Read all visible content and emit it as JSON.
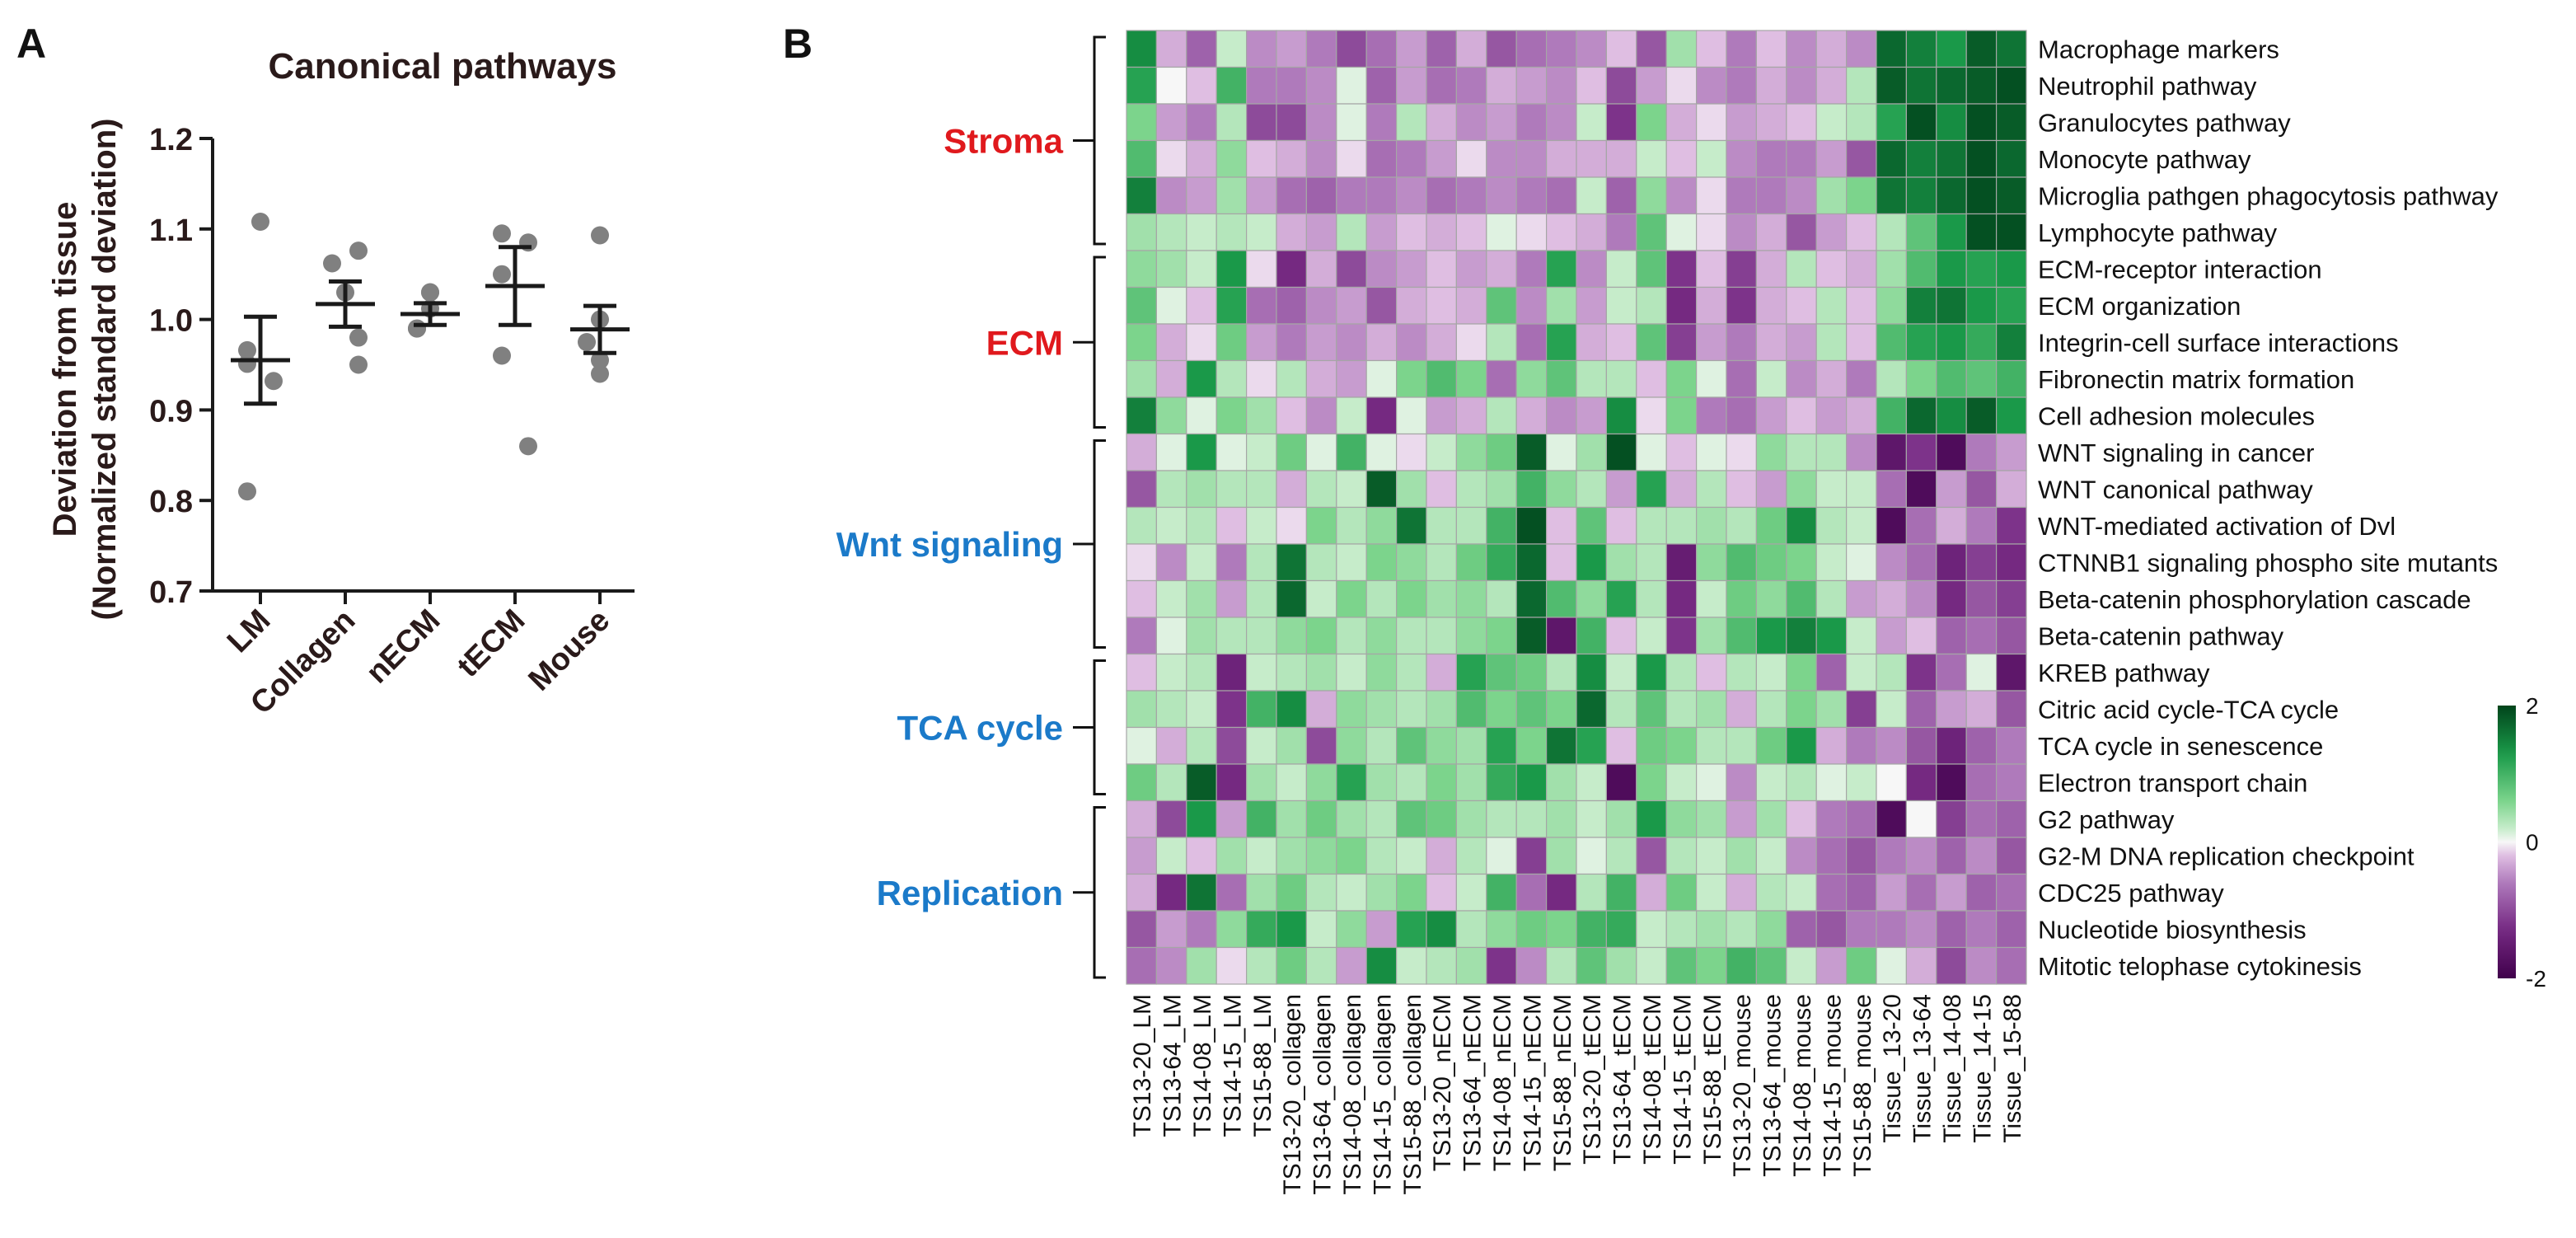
{
  "chart_data": [
    {
      "panel": "A",
      "type": "scatter",
      "title": "Canonical pathways",
      "ylabel_lines": [
        "Deviation from tissue",
        "(Normalized standard deviation)"
      ],
      "ylim": [
        0.7,
        1.2
      ],
      "yticks": [
        0.7,
        0.8,
        0.9,
        1.0,
        1.1,
        1.2
      ],
      "ytick_labels": [
        "0.7",
        "0.8",
        "0.9",
        "1.0",
        "1.1",
        "1.2"
      ],
      "categories": [
        "LM",
        "Collagen",
        "nECM",
        "tECM",
        "Mouse"
      ],
      "points": [
        [
          1.108,
          0.966,
          0.951,
          0.932,
          0.81
        ],
        [
          1.076,
          1.062,
          1.03,
          0.98,
          0.95
        ],
        [
          1.03,
          1.03,
          1.012,
          0.99,
          0.99
        ],
        [
          1.095,
          1.085,
          1.05,
          0.96,
          0.86
        ],
        [
          1.093,
          1.0,
          0.975,
          0.955,
          0.94
        ]
      ],
      "mean": [
        0.955,
        1.017,
        1.006,
        1.037,
        0.989
      ],
      "sem_upper": [
        1.003,
        1.042,
        1.018,
        1.08,
        1.015
      ],
      "sem_lower": [
        0.907,
        0.992,
        0.994,
        0.994,
        0.963
      ],
      "point_color": "#808080",
      "line_color": "#1a1a1a"
    },
    {
      "panel": "B",
      "type": "heatmap",
      "rows": [
        "Macrophage markers",
        "Neutrophil pathway",
        "Granulocytes pathway",
        "Monocyte pathway",
        "Microglia pathgen phagocytosis pathway",
        "Lymphocyte pathway",
        "ECM-receptor interaction",
        "ECM organization",
        "Integrin-cell surface interactions",
        "Fibronectin matrix formation",
        "Cell adhesion molecules",
        "WNT signaling in cancer",
        "WNT canonical pathway",
        "WNT-mediated activation of Dvl",
        "CTNNB1 signaling phospho site mutants",
        "Beta-catenin phosphorylation cascade",
        "Beta-catenin pathway",
        "KREB pathway",
        "Citric acid cycle-TCA cycle",
        "TCA cycle in senescence",
        "Electron transport chain",
        "G2 pathway",
        "G2-M DNA replication checkpoint",
        "CDC25 pathway",
        "Nucleotide biosynthesis",
        "Mitotic telophase cytokinesis"
      ],
      "columns": [
        "TS13-20_LM",
        "TS13-64_LM",
        "TS14-08_LM",
        "TS14-15_LM",
        "TS15-88_LM",
        "TS13-20_collagen",
        "TS13-64_collagen",
        "TS14-08_collagen",
        "TS14-15_collagen",
        "TS15-88_collagen",
        "TS13-20_nECM",
        "TS13-64_nECM",
        "TS14-08_nECM",
        "TS14-15_nECM",
        "TS15-88_nECM",
        "TS13-20_tECM",
        "TS13-64_tECM",
        "TS14-08_tECM",
        "TS14-15_tECM",
        "TS15-88_tECM",
        "TS13-20_mouse",
        "TS13-64_mouse",
        "TS14-08_mouse",
        "TS14-15_mouse",
        "TS15-88_mouse",
        "Tissue_13-20",
        "Tissue_13-64",
        "Tissue_14-08",
        "Tissue_14-15",
        "Tissue_15-88"
      ],
      "groups": [
        {
          "label": "Stroma",
          "color": "#e0191d",
          "start_row": 0,
          "end_row": 5
        },
        {
          "label": "ECM",
          "color": "#e0191d",
          "start_row": 6,
          "end_row": 10
        },
        {
          "label": "Wnt signaling",
          "color": "#1b7ac9",
          "start_row": 11,
          "end_row": 16
        },
        {
          "label": "TCA cycle",
          "color": "#1b7ac9",
          "start_row": 17,
          "end_row": 20
        },
        {
          "label": "Replication",
          "color": "#1b7ac9",
          "start_row": 21,
          "end_row": 25
        }
      ],
      "values": [
        [
          1.4,
          -0.3,
          -0.8,
          0.2,
          -0.5,
          -0.4,
          -0.6,
          -1.0,
          -0.7,
          -0.4,
          -0.8,
          -0.3,
          -0.9,
          -0.7,
          -0.6,
          -0.5,
          -0.2,
          -0.9,
          0.4,
          -0.2,
          -0.6,
          -0.2,
          -0.5,
          -0.3,
          -0.5,
          1.7,
          1.5,
          1.3,
          1.8,
          1.6
        ],
        [
          1.2,
          0.0,
          -0.2,
          1.0,
          -0.6,
          -0.6,
          -0.5,
          0.1,
          -0.8,
          -0.4,
          -0.7,
          -0.6,
          -0.3,
          -0.4,
          -0.5,
          -0.2,
          -1.0,
          -0.4,
          -0.1,
          -0.5,
          -0.6,
          -0.3,
          -0.5,
          -0.3,
          0.3,
          1.8,
          1.6,
          1.7,
          1.8,
          1.9
        ],
        [
          0.6,
          -0.4,
          -0.6,
          0.3,
          -1.0,
          -1.0,
          -0.5,
          0.1,
          -0.6,
          0.3,
          -0.3,
          -0.5,
          -0.4,
          -0.6,
          -0.5,
          0.2,
          -1.2,
          0.6,
          -0.3,
          -0.1,
          -0.4,
          -0.3,
          -0.2,
          0.2,
          0.3,
          1.2,
          1.9,
          1.4,
          1.9,
          1.8
        ],
        [
          0.9,
          -0.1,
          -0.3,
          0.5,
          -0.2,
          -0.3,
          -0.5,
          -0.1,
          -0.7,
          -0.6,
          -0.4,
          -0.1,
          -0.5,
          -0.5,
          -0.3,
          -0.3,
          -0.3,
          0.2,
          -0.2,
          0.2,
          -0.5,
          -0.6,
          -0.6,
          -0.4,
          -0.9,
          1.7,
          1.5,
          1.6,
          1.9,
          1.7
        ],
        [
          1.5,
          -0.5,
          -0.4,
          0.4,
          -0.4,
          -0.7,
          -0.8,
          -0.6,
          -0.6,
          -0.5,
          -0.7,
          -0.6,
          -0.5,
          -0.6,
          -0.7,
          0.2,
          -0.8,
          0.5,
          -0.5,
          -0.1,
          -0.6,
          -0.6,
          -0.5,
          0.4,
          0.6,
          1.6,
          1.5,
          1.7,
          1.9,
          1.8
        ],
        [
          0.4,
          0.3,
          0.2,
          0.3,
          0.2,
          -0.3,
          -0.4,
          0.3,
          -0.4,
          -0.2,
          -0.3,
          -0.2,
          0.1,
          -0.1,
          -0.2,
          -0.3,
          -0.6,
          0.8,
          0.1,
          -0.1,
          -0.5,
          -0.3,
          -0.9,
          -0.4,
          -0.2,
          0.3,
          0.8,
          1.3,
          1.9,
          1.9
        ],
        [
          0.5,
          0.4,
          0.2,
          1.3,
          -0.1,
          -1.3,
          -0.3,
          -1.0,
          -0.5,
          -0.4,
          -0.2,
          -0.4,
          -0.3,
          -0.6,
          1.2,
          -0.5,
          0.2,
          0.8,
          -1.2,
          -0.2,
          -1.1,
          -0.3,
          0.3,
          -0.2,
          -0.3,
          0.4,
          0.9,
          1.3,
          1.2,
          1.3
        ],
        [
          0.8,
          0.1,
          -0.2,
          1.2,
          -0.7,
          -0.8,
          -0.5,
          -0.4,
          -0.9,
          -0.3,
          -0.2,
          -0.3,
          0.8,
          -0.5,
          0.4,
          -0.4,
          0.2,
          0.3,
          -1.3,
          -0.3,
          -1.2,
          -0.3,
          -0.2,
          0.3,
          -0.2,
          0.5,
          1.5,
          1.6,
          1.3,
          1.2
        ],
        [
          0.6,
          -0.3,
          -0.1,
          0.7,
          -0.4,
          -0.6,
          -0.4,
          -0.5,
          -0.3,
          -0.5,
          -0.3,
          -0.1,
          0.3,
          -0.7,
          1.2,
          -0.3,
          -0.2,
          0.8,
          -1.1,
          -0.4,
          -0.6,
          -0.3,
          -0.4,
          0.3,
          -0.2,
          0.9,
          1.2,
          1.3,
          1.1,
          1.5
        ],
        [
          0.4,
          -0.3,
          1.3,
          0.3,
          -0.1,
          0.3,
          -0.3,
          -0.4,
          0.1,
          0.6,
          0.9,
          0.6,
          -0.7,
          0.5,
          0.8,
          0.3,
          0.3,
          -0.2,
          0.6,
          0.1,
          -0.7,
          0.2,
          -0.5,
          -0.3,
          -0.6,
          0.3,
          0.6,
          0.9,
          0.8,
          1.0
        ],
        [
          1.5,
          0.5,
          0.1,
          0.6,
          0.4,
          -0.2,
          -0.5,
          0.2,
          -1.3,
          0.1,
          -0.4,
          -0.3,
          0.3,
          -0.3,
          -0.5,
          -0.4,
          1.4,
          -0.1,
          0.6,
          -0.6,
          -0.7,
          -0.4,
          -0.2,
          -0.4,
          -0.3,
          1.0,
          1.7,
          1.4,
          1.8,
          1.3
        ],
        [
          -0.3,
          0.1,
          1.3,
          0.1,
          0.2,
          0.7,
          0.1,
          1.0,
          0.1,
          -0.1,
          0.2,
          0.5,
          0.7,
          1.8,
          0.1,
          0.4,
          1.9,
          0.1,
          -0.2,
          0.1,
          -0.1,
          0.5,
          0.3,
          0.3,
          -0.5,
          -1.6,
          -1.2,
          -1.8,
          -0.6,
          -0.4
        ],
        [
          -0.9,
          0.3,
          0.4,
          0.3,
          0.3,
          -0.3,
          0.3,
          0.2,
          1.8,
          0.4,
          -0.2,
          0.3,
          0.4,
          1.0,
          0.5,
          0.3,
          -0.4,
          1.2,
          -0.3,
          0.3,
          -0.2,
          -0.4,
          0.5,
          0.2,
          0.2,
          -0.7,
          -1.8,
          -0.4,
          -0.9,
          -0.3
        ],
        [
          0.3,
          0.2,
          0.3,
          -0.2,
          0.2,
          -0.1,
          0.6,
          0.3,
          0.5,
          1.6,
          0.3,
          0.3,
          1.0,
          1.9,
          -0.2,
          0.8,
          -0.2,
          0.3,
          0.3,
          0.4,
          0.3,
          0.7,
          1.4,
          0.3,
          0.2,
          -1.8,
          -0.7,
          -0.3,
          -0.6,
          -1.2
        ],
        [
          -0.1,
          -0.5,
          0.2,
          -0.6,
          0.3,
          1.6,
          0.3,
          0.2,
          0.6,
          0.5,
          0.3,
          0.7,
          1.1,
          1.7,
          -0.2,
          1.3,
          0.4,
          0.3,
          -1.5,
          0.5,
          0.9,
          0.7,
          0.6,
          0.2,
          0.1,
          -0.5,
          -0.7,
          -1.4,
          -1.1,
          -1.3
        ],
        [
          -0.2,
          0.2,
          0.4,
          -0.4,
          0.3,
          1.7,
          0.2,
          0.6,
          0.3,
          0.6,
          0.4,
          0.5,
          0.3,
          1.7,
          0.9,
          0.5,
          1.2,
          0.3,
          -1.3,
          0.2,
          0.7,
          0.5,
          0.9,
          0.3,
          -0.4,
          -0.3,
          -0.5,
          -1.3,
          -0.9,
          -1.1
        ],
        [
          -0.6,
          0.1,
          0.4,
          0.3,
          0.3,
          0.5,
          0.6,
          0.3,
          0.5,
          0.3,
          0.3,
          0.5,
          0.6,
          1.8,
          -1.6,
          1.0,
          -0.2,
          0.2,
          -1.2,
          0.4,
          0.9,
          1.3,
          1.5,
          1.3,
          0.2,
          -0.4,
          -0.2,
          -0.8,
          -0.7,
          -0.9
        ],
        [
          -0.2,
          0.2,
          0.3,
          -1.4,
          0.2,
          0.3,
          0.4,
          0.2,
          0.5,
          0.3,
          -0.3,
          1.2,
          0.8,
          0.7,
          0.3,
          1.4,
          0.2,
          1.3,
          0.3,
          -0.2,
          0.3,
          0.2,
          0.6,
          -0.8,
          0.2,
          0.3,
          -1.2,
          -0.7,
          0.1,
          -1.6
        ],
        [
          0.4,
          0.3,
          0.2,
          -1.2,
          1.0,
          1.4,
          -0.3,
          0.5,
          0.4,
          0.3,
          0.4,
          0.9,
          0.6,
          0.8,
          0.6,
          1.7,
          0.3,
          0.8,
          0.3,
          0.4,
          -0.3,
          0.3,
          0.6,
          0.4,
          -1.1,
          0.2,
          -0.8,
          -0.4,
          -0.3,
          -0.9
        ],
        [
          0.1,
          -0.3,
          0.3,
          -1.0,
          0.2,
          0.4,
          -1.0,
          0.5,
          0.3,
          0.8,
          0.5,
          0.4,
          1.2,
          0.6,
          1.6,
          1.2,
          -0.2,
          0.7,
          0.6,
          0.3,
          0.3,
          0.7,
          1.3,
          -0.3,
          -0.6,
          -0.5,
          -0.9,
          -1.4,
          -0.8,
          -0.6
        ],
        [
          0.7,
          0.3,
          1.8,
          -1.3,
          0.4,
          0.2,
          0.5,
          1.2,
          0.4,
          0.3,
          0.6,
          0.4,
          1.1,
          1.3,
          0.4,
          0.2,
          -1.8,
          0.6,
          0.2,
          0.1,
          -0.5,
          0.2,
          0.3,
          0.1,
          0.2,
          0.0,
          -1.3,
          -1.8,
          -0.7,
          -0.6
        ],
        [
          -0.3,
          -1.0,
          1.3,
          -0.4,
          1.0,
          0.4,
          0.7,
          0.4,
          0.3,
          0.8,
          0.7,
          0.4,
          0.3,
          0.3,
          0.4,
          0.2,
          0.4,
          1.3,
          0.5,
          0.4,
          -0.4,
          0.4,
          -0.2,
          -0.6,
          -0.7,
          -1.8,
          0.0,
          -1.1,
          -0.7,
          -0.8
        ],
        [
          -0.4,
          0.2,
          -0.2,
          0.4,
          0.2,
          0.4,
          0.5,
          0.6,
          0.3,
          0.2,
          -0.3,
          0.3,
          0.1,
          -1.1,
          0.4,
          0.1,
          0.3,
          -0.9,
          0.3,
          0.2,
          0.4,
          0.2,
          -0.5,
          -0.7,
          -0.9,
          -0.6,
          -0.5,
          -0.8,
          -0.5,
          -0.9
        ],
        [
          -0.3,
          -1.3,
          1.6,
          -0.7,
          0.4,
          0.7,
          0.3,
          0.2,
          0.4,
          0.6,
          -0.2,
          0.2,
          1.0,
          -0.7,
          -1.3,
          0.3,
          1.0,
          -0.3,
          0.7,
          0.2,
          -0.3,
          0.3,
          0.2,
          -0.7,
          -0.8,
          -0.4,
          -0.7,
          -0.4,
          -0.8,
          -0.7
        ],
        [
          -0.9,
          -0.4,
          -0.6,
          0.5,
          1.1,
          1.3,
          0.2,
          0.5,
          -0.4,
          1.2,
          1.4,
          0.3,
          0.5,
          0.7,
          0.6,
          1.0,
          1.1,
          0.2,
          0.3,
          0.4,
          0.3,
          0.5,
          -0.8,
          -0.9,
          -0.6,
          -0.6,
          -0.5,
          -0.8,
          -0.6,
          -0.8
        ],
        [
          -0.7,
          -0.5,
          0.4,
          -0.1,
          0.3,
          0.7,
          0.3,
          -0.4,
          1.4,
          0.2,
          0.3,
          0.4,
          -1.2,
          -0.5,
          0.3,
          0.8,
          0.4,
          0.2,
          0.8,
          0.6,
          1.0,
          0.8,
          0.2,
          -0.4,
          0.7,
          0.1,
          -0.3,
          -1.0,
          -0.5,
          -0.7
        ]
      ],
      "color_scale": {
        "min": -2,
        "max": 2,
        "tick_labels": [
          "2",
          "0",
          "-2"
        ],
        "low_color": "#40004b",
        "mid_color": "#f7f7f7",
        "high_color": "#00441b"
      }
    }
  ],
  "panel_labels": {
    "a": "A",
    "b": "B"
  }
}
